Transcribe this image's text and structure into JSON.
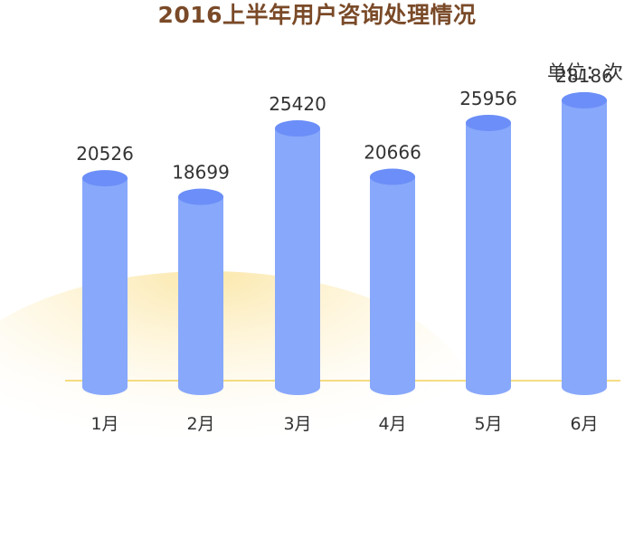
{
  "chart_data": {
    "type": "bar",
    "title": "2016上半年用户咨询处理情况",
    "unit_label": "单位：次",
    "categories": [
      "1月",
      "2月",
      "3月",
      "4月",
      "5月",
      "6月"
    ],
    "values": [
      20526,
      18699,
      25420,
      20666,
      25956,
      28186
    ],
    "ylim": [
      0,
      30000
    ],
    "grid": false,
    "legend": "none",
    "colors": {
      "bar_body": "#88a8fb",
      "bar_top": "#6b8ef8",
      "baseline": "#f2d25a",
      "glow": "#fbe9a6",
      "label": "#333333",
      "title": "#7a4a28"
    }
  }
}
